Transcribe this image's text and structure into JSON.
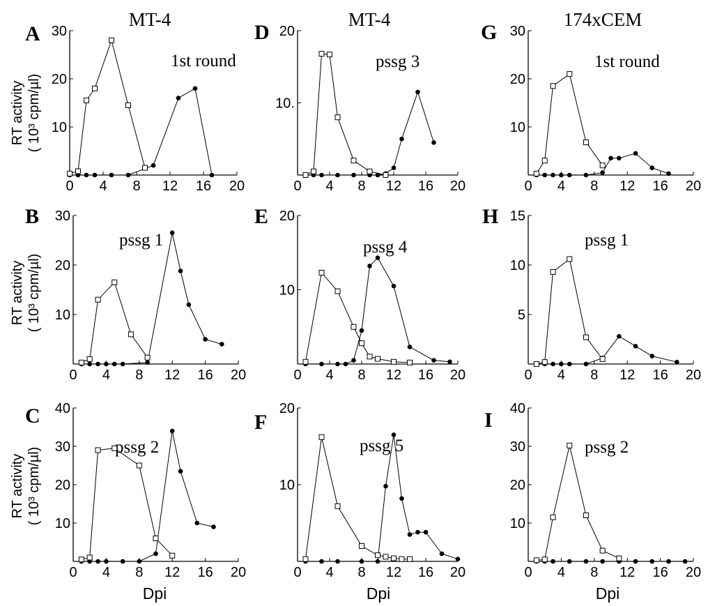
{
  "figure": {
    "column_titles": [
      "MT-4",
      "MT-4",
      "174xCEM"
    ],
    "ylabel_line1": "RT activity",
    "ylabel_line2": "( 10³ cpm/µl)",
    "xlabel": "Dpi"
  },
  "chart_data": [
    {
      "type": "line",
      "panel": "A",
      "title": "",
      "annotation": "1st round",
      "xlabel": "",
      "ylabel": "RT activity ( 10³ cpm/µl)",
      "xlim": [
        0,
        20
      ],
      "ylim": [
        0,
        30
      ],
      "x_ticks": [
        0,
        4,
        8,
        12,
        16,
        20
      ],
      "x_tick_labels": [
        "0",
        "4",
        "8",
        "12",
        "16",
        "20"
      ],
      "y_ticks": [
        10,
        20,
        30
      ],
      "y_tick_labels": [
        "10",
        "20",
        "30"
      ],
      "grid": false,
      "series": [
        {
          "marker": "open-square",
          "x": [
            0,
            1,
            2,
            3,
            5,
            7,
            9
          ],
          "y": [
            0.3,
            0.8,
            15.5,
            18,
            28,
            14.5,
            1.5
          ]
        },
        {
          "marker": "filled-circle",
          "x": [
            0,
            1,
            2,
            3,
            5,
            7,
            10,
            13,
            15,
            17
          ],
          "y": [
            0,
            0,
            0,
            0,
            0,
            0,
            2,
            16,
            18,
            0
          ]
        }
      ]
    },
    {
      "type": "line",
      "panel": "B",
      "title": "",
      "annotation": "pssg 1",
      "xlabel": "",
      "ylabel": "RT activity ( 10³ cpm/µl)",
      "xlim": [
        0,
        20
      ],
      "ylim": [
        0,
        30
      ],
      "x_ticks": [
        0,
        4,
        8,
        12,
        16,
        20
      ],
      "x_tick_labels": [
        "0",
        "4",
        "8",
        "12",
        "16",
        "20"
      ],
      "y_ticks": [
        10,
        20,
        30
      ],
      "y_tick_labels": [
        "10",
        "20",
        "30"
      ],
      "grid": false,
      "series": [
        {
          "marker": "open-square",
          "x": [
            1,
            2,
            3,
            5,
            7,
            9
          ],
          "y": [
            0.3,
            1,
            13,
            16.5,
            6,
            1.3
          ]
        },
        {
          "marker": "filled-circle",
          "x": [
            1,
            2,
            3,
            4,
            5,
            6,
            9,
            12,
            13,
            14,
            16,
            18
          ],
          "y": [
            0,
            0,
            0,
            0,
            0,
            0,
            0.3,
            26.5,
            18.8,
            12,
            5,
            4
          ]
        }
      ]
    },
    {
      "type": "line",
      "panel": "C",
      "title": "",
      "annotation": "pssg 2",
      "xlabel": "Dpi",
      "ylabel": "RT activity ( 10³ cpm/µl)",
      "xlim": [
        0,
        20
      ],
      "ylim": [
        0,
        40
      ],
      "x_ticks": [
        0,
        4,
        8,
        12,
        16,
        20
      ],
      "x_tick_labels": [
        "0",
        "4",
        "8",
        "12",
        "16",
        "20"
      ],
      "y_ticks": [
        10,
        20,
        30,
        40
      ],
      "y_tick_labels": [
        "10",
        "20",
        "30",
        "40"
      ],
      "grid": false,
      "series": [
        {
          "marker": "open-square",
          "x": [
            1,
            2,
            3,
            5,
            8,
            10,
            12
          ],
          "y": [
            0.5,
            1,
            29,
            29.5,
            25,
            6,
            1.5
          ]
        },
        {
          "marker": "filled-circle",
          "x": [
            1,
            2,
            3,
            4,
            6,
            8,
            10,
            12,
            13,
            15,
            17
          ],
          "y": [
            0,
            0,
            0,
            0,
            0,
            0,
            2,
            34,
            23.5,
            10,
            9
          ]
        }
      ]
    },
    {
      "type": "line",
      "panel": "D",
      "title": "",
      "annotation": "pssg 3",
      "xlabel": "",
      "ylabel": "",
      "xlim": [
        0,
        20
      ],
      "ylim": [
        0,
        20
      ],
      "x_ticks": [
        0,
        4,
        8,
        12,
        16,
        20
      ],
      "x_tick_labels": [
        "0",
        "4",
        "8",
        "12",
        "16",
        "20"
      ],
      "y_ticks": [
        10,
        20
      ],
      "y_tick_labels": [
        "10.",
        "20"
      ],
      "grid": false,
      "series": [
        {
          "marker": "open-square",
          "x": [
            1,
            2,
            3,
            4,
            5,
            7,
            9,
            11
          ],
          "y": [
            0,
            0.5,
            16.8,
            16.7,
            8,
            2,
            0.5,
            0
          ]
        },
        {
          "marker": "filled-circle",
          "x": [
            1,
            2,
            3,
            5,
            7,
            9,
            10,
            11,
            12,
            13,
            15,
            17
          ],
          "y": [
            0,
            0,
            0,
            0,
            0,
            0,
            0,
            0.2,
            1,
            5,
            11.5,
            4.5
          ]
        }
      ]
    },
    {
      "type": "line",
      "panel": "E",
      "title": "",
      "annotation": "pssg 4",
      "xlabel": "",
      "ylabel": "",
      "xlim": [
        0,
        20
      ],
      "ylim": [
        0,
        20
      ],
      "x_ticks": [
        0,
        4,
        8,
        12,
        16,
        20
      ],
      "x_tick_labels": [
        "0",
        "4",
        "8",
        "12",
        "16",
        "20"
      ],
      "y_ticks": [
        10,
        20
      ],
      "y_tick_labels": [
        "10",
        "20"
      ],
      "grid": false,
      "series": [
        {
          "marker": "open-square",
          "x": [
            1,
            3,
            5,
            7,
            8,
            9,
            10,
            12,
            14
          ],
          "y": [
            0.3,
            12.3,
            9.8,
            5,
            2.8,
            1,
            0.7,
            0.3,
            0.2
          ]
        },
        {
          "marker": "filled-circle",
          "x": [
            1,
            3,
            5,
            6,
            7,
            8,
            9,
            10,
            12,
            14,
            17,
            19
          ],
          "y": [
            0,
            0,
            0,
            0,
            0.5,
            4.5,
            13.2,
            14.3,
            10.5,
            2.3,
            0.5,
            0.3
          ]
        }
      ]
    },
    {
      "type": "line",
      "panel": "F",
      "title": "",
      "annotation": "pssg 5",
      "xlabel": "Dpi",
      "ylabel": "",
      "xlim": [
        0,
        20
      ],
      "ylim": [
        0,
        20
      ],
      "x_ticks": [
        0,
        4,
        8,
        12,
        16,
        20
      ],
      "x_tick_labels": [
        "0",
        "4",
        "8",
        "12",
        "16",
        "20"
      ],
      "y_ticks": [
        10,
        20
      ],
      "y_tick_labels": [
        "10",
        "20"
      ],
      "grid": false,
      "series": [
        {
          "marker": "open-square",
          "x": [
            1,
            3,
            5,
            8,
            10,
            11,
            12,
            13,
            14
          ],
          "y": [
            0.3,
            16.2,
            7.2,
            2,
            0.8,
            0.6,
            0.4,
            0.3,
            0.3
          ]
        },
        {
          "marker": "filled-circle",
          "x": [
            1,
            3,
            5,
            8,
            10,
            11,
            12,
            13,
            14,
            15,
            16,
            18,
            20
          ],
          "y": [
            0,
            0,
            0,
            0,
            0,
            9.8,
            16.5,
            8.2,
            3.5,
            3.8,
            3.8,
            1,
            0.3
          ]
        }
      ]
    },
    {
      "type": "line",
      "panel": "G",
      "title": "",
      "annotation": "1st round",
      "xlabel": "",
      "ylabel": "",
      "xlim": [
        0,
        20
      ],
      "ylim": [
        0,
        30
      ],
      "x_ticks": [
        0,
        4,
        8,
        12,
        16,
        20
      ],
      "x_tick_labels": [
        "0",
        "4",
        "8",
        "12",
        "16",
        "20"
      ],
      "y_ticks": [
        10,
        20,
        30
      ],
      "y_tick_labels": [
        "10",
        "20",
        "30"
      ],
      "grid": false,
      "series": [
        {
          "marker": "open-square",
          "x": [
            1,
            2,
            3,
            5,
            7,
            9
          ],
          "y": [
            0.3,
            3,
            18.5,
            21,
            6.8,
            2
          ]
        },
        {
          "marker": "filled-circle",
          "x": [
            1,
            2,
            3,
            4,
            5,
            7,
            9,
            10,
            11,
            13,
            15,
            17
          ],
          "y": [
            0,
            0,
            0,
            0,
            0,
            0,
            0.5,
            3.5,
            3.5,
            4.5,
            1.5,
            0.3
          ]
        }
      ]
    },
    {
      "type": "line",
      "panel": "H",
      "title": "",
      "annotation": "pssg 1",
      "xlabel": "",
      "ylabel": "",
      "xlim": [
        0,
        20
      ],
      "ylim": [
        0,
        15
      ],
      "x_ticks": [
        0,
        4,
        8,
        12,
        16,
        20
      ],
      "x_tick_labels": [
        "0",
        "4",
        "8",
        "12",
        "16",
        "20"
      ],
      "y_ticks": [
        5,
        10,
        15
      ],
      "y_tick_labels": [
        "5",
        "10",
        "15"
      ],
      "grid": false,
      "series": [
        {
          "marker": "open-square",
          "x": [
            1,
            2,
            3,
            5,
            7,
            9
          ],
          "y": [
            0,
            0.2,
            9.3,
            10.6,
            2.7,
            0.5
          ]
        },
        {
          "marker": "filled-circle",
          "x": [
            1,
            2,
            3,
            4,
            5,
            7,
            9,
            11,
            13,
            15,
            18
          ],
          "y": [
            0,
            0,
            0,
            0,
            0,
            0,
            0.6,
            2.8,
            1.8,
            0.8,
            0.2
          ]
        }
      ]
    },
    {
      "type": "line",
      "panel": "I",
      "title": "",
      "annotation": "pssg 2",
      "xlabel": "Dpi",
      "ylabel": "",
      "xlim": [
        0,
        20
      ],
      "ylim": [
        0,
        40
      ],
      "x_ticks": [
        0,
        4,
        8,
        12,
        16,
        20
      ],
      "x_tick_labels": [
        "0",
        "4",
        "8",
        "12",
        "16",
        "20"
      ],
      "y_ticks": [
        10,
        20,
        30,
        40
      ],
      "y_tick_labels": [
        "10",
        "20",
        "30",
        "40"
      ],
      "grid": false,
      "series": [
        {
          "marker": "open-square",
          "x": [
            1,
            2,
            3,
            5,
            7,
            9,
            11
          ],
          "y": [
            0.3,
            0.5,
            11.5,
            30.2,
            12,
            2.8,
            0.8
          ]
        },
        {
          "marker": "filled-circle",
          "x": [
            1,
            2,
            3,
            5,
            7,
            9,
            11,
            13,
            15,
            17,
            19
          ],
          "y": [
            0,
            0,
            0,
            0,
            0,
            0,
            0,
            0,
            0,
            0,
            0
          ]
        }
      ]
    }
  ]
}
